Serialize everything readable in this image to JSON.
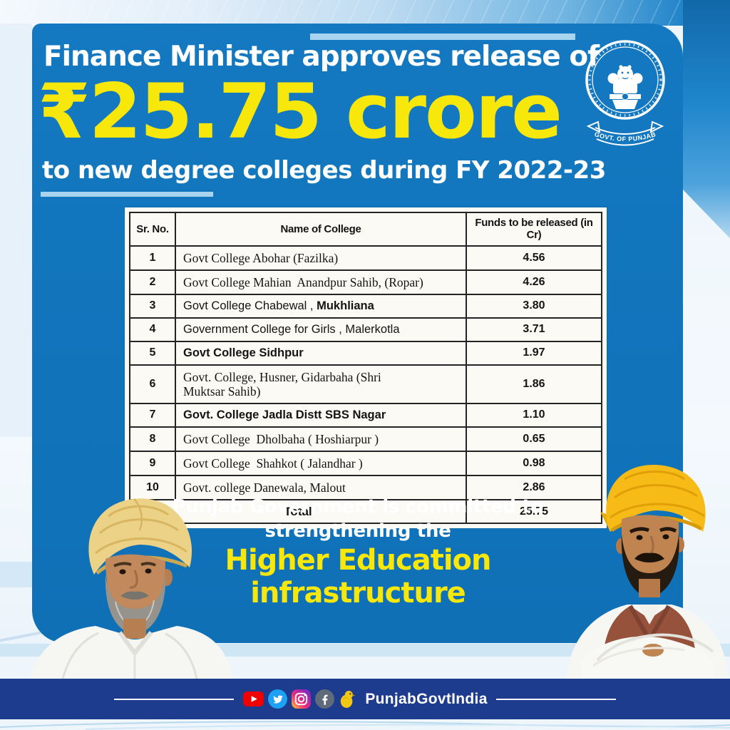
{
  "header": {
    "line1": "Finance Minister approves release of",
    "amount": "₹25.75 crore",
    "line2": "to new degree colleges during FY 2022-23"
  },
  "emblem": {
    "ribbon_text": "GOVT. OF PUNJAB"
  },
  "table": {
    "columns": [
      "Sr. No.",
      "Name of College",
      "Funds to be released (in Cr)"
    ],
    "rows": [
      {
        "sr": "1",
        "font": "serif",
        "parts": [
          {
            "text": "Govt College Abohar (Fazilka)",
            "bold": false
          }
        ],
        "amount": "4.56"
      },
      {
        "sr": "2",
        "font": "serif",
        "parts": [
          {
            "text": "Govt College Mahian  Anandpur Sahib, (Ropar)",
            "bold": false
          }
        ],
        "amount": "4.26"
      },
      {
        "sr": "3",
        "font": "sans",
        "parts": [
          {
            "text": "Govt College Chabewal , ",
            "bold": false
          },
          {
            "text": "Mukhliana",
            "bold": true
          }
        ],
        "amount": "3.80"
      },
      {
        "sr": "4",
        "font": "sans",
        "parts": [
          {
            "text": "Government College for Girls , Malerkotla",
            "bold": false
          }
        ],
        "amount": "3.71"
      },
      {
        "sr": "5",
        "font": "sans",
        "parts": [
          {
            "text": "Govt College Sidhpur",
            "bold": true
          }
        ],
        "amount": "1.97"
      },
      {
        "sr": "6",
        "font": "serif",
        "parts": [
          {
            "text": "Govt. College, Husner, Gidarbaha (Shri\nMuktsar Sahib)",
            "bold": false
          }
        ],
        "amount": "1.86"
      },
      {
        "sr": "7",
        "font": "sans",
        "parts": [
          {
            "text": "Govt. College Jadla Distt SBS Nagar",
            "bold": true
          }
        ],
        "amount": "1.10"
      },
      {
        "sr": "8",
        "font": "serif",
        "parts": [
          {
            "text": "Govt College  Dholbaha ( Hoshiarpur )",
            "bold": false
          }
        ],
        "amount": "0.65"
      },
      {
        "sr": "9",
        "font": "serif",
        "parts": [
          {
            "text": "Govt College  Shahkot ( Jalandhar )",
            "bold": false
          }
        ],
        "amount": "0.98"
      },
      {
        "sr": "10",
        "font": "serif",
        "parts": [
          {
            "text": "Govt. college Danewala, Malout",
            "bold": false
          }
        ],
        "amount": "2.86"
      }
    ],
    "total_label": "Total",
    "total_amount": "25.75"
  },
  "message": {
    "line1": "Punjab Government is committed to",
    "line2": "strengthening the",
    "highlight1": "Higher Education",
    "highlight2": "infrastructure"
  },
  "footer": {
    "handle": "PunjabGovtIndia",
    "icons": [
      "youtube-icon",
      "twitter-icon",
      "instagram-icon",
      "facebook-icon",
      "koo-icon"
    ]
  },
  "colors": {
    "card_blue": "#1176bd",
    "accent_yellow": "#f8e70b",
    "light_blue": "#a9d4ef",
    "footer_navy": "#1e3c8e",
    "table_paper": "#fbfaf4"
  }
}
